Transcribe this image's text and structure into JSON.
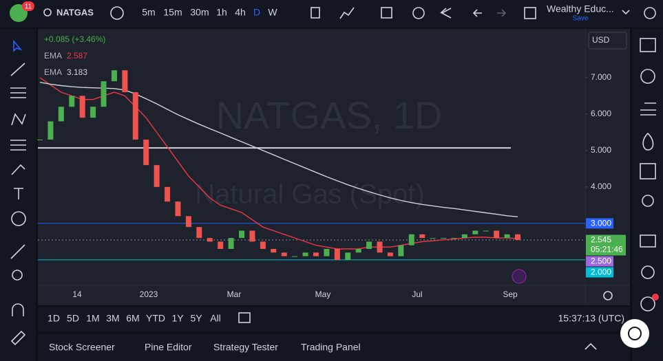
{
  "header": {
    "badge": "11",
    "symbol": "NATGAS",
    "intervals": [
      "5m",
      "15m",
      "30m",
      "1h",
      "4h",
      "D",
      "W"
    ],
    "account": "Wealthy Educ...",
    "save": "Save"
  },
  "legend": {
    "change": "+0.085 (+3.46%)",
    "ema": [
      {
        "label": "EMA",
        "value": "2.587"
      },
      {
        "label": "EMA",
        "value": "3.183"
      }
    ]
  },
  "currency": "USD",
  "chart": {
    "type": "candlestick",
    "watermark": "NATGAS, 1D",
    "subtitle": "Natural Gas (Spot)",
    "x_labels": [
      "14",
      "2023",
      "Mar",
      "May",
      "Jul",
      "Sep"
    ],
    "ylim": [
      1.3,
      8.28
    ],
    "yticks": [
      {
        "value": 4,
        "label": "4.000"
      },
      {
        "value": 5,
        "label": "5.000"
      },
      {
        "value": 6,
        "label": "6.000"
      },
      {
        "value": 7,
        "label": "7.000"
      }
    ],
    "closes": [
      5.3,
      5.8,
      6.2,
      6.5,
      5.9,
      6.2,
      6.9,
      7.2,
      6.6,
      5.3,
      4.6,
      4.0,
      3.6,
      3.2,
      2.9,
      2.6,
      2.5,
      2.3,
      2.6,
      2.8,
      2.5,
      2.3,
      2.2,
      2.1,
      2.1,
      2.2,
      2.1,
      2.3,
      2.0,
      2.2,
      2.3,
      2.5,
      2.2,
      2.1,
      2.4,
      2.7,
      2.6,
      2.6,
      2.6,
      2.6,
      2.7,
      2.8,
      2.8,
      2.6,
      2.7,
      2.545
    ],
    "up_color": "#4caf50",
    "down_color": "#ef5350",
    "series": [
      {
        "name": "EMA",
        "color": "#f23645",
        "values": [
          7.0,
          6.8,
          6.6,
          6.5,
          6.4,
          6.4,
          6.5,
          6.6,
          6.5,
          6.2,
          5.9,
          5.5,
          5.1,
          4.7,
          4.3,
          4.0,
          3.7,
          3.5,
          3.4,
          3.3,
          3.1,
          2.9,
          2.8,
          2.7,
          2.6,
          2.5,
          2.4,
          2.35,
          2.3,
          2.3,
          2.3,
          2.35,
          2.35,
          2.35,
          2.4,
          2.45,
          2.5,
          2.52,
          2.55,
          2.57,
          2.6,
          2.62,
          2.62,
          2.6,
          2.6,
          2.587
        ]
      },
      {
        "name": "EMA",
        "color": "#d1d4dc",
        "values": [
          6.87,
          6.82,
          6.78,
          6.75,
          6.73,
          6.72,
          6.71,
          6.7,
          6.66,
          6.55,
          6.42,
          6.28,
          6.13,
          5.98,
          5.85,
          5.72,
          5.6,
          5.48,
          5.36,
          5.24,
          5.12,
          5.0,
          4.88,
          4.76,
          4.64,
          4.52,
          4.4,
          4.28,
          4.17,
          4.06,
          3.96,
          3.87,
          3.78,
          3.7,
          3.63,
          3.57,
          3.52,
          3.48,
          3.44,
          3.41,
          3.37,
          3.33,
          3.29,
          3.25,
          3.21,
          3.183
        ]
      }
    ],
    "resistance": 5.07,
    "levels": [
      {
        "value": 3,
        "label": "3.000",
        "color": "#2962ff"
      },
      {
        "value": 2.5,
        "label": "2.500",
        "color": "#9c6ade"
      },
      {
        "value": 2,
        "label": "2.000",
        "color": "#00bcd4"
      }
    ],
    "last": {
      "label": "2.545",
      "countdown": "05:21:46",
      "color": "#4caf50"
    }
  },
  "ranges": [
    "1D",
    "5D",
    "1M",
    "3M",
    "6M",
    "YTD",
    "1Y",
    "5Y",
    "All"
  ],
  "clock": "15:37:13 (UTC)",
  "tabs": [
    "Stock Screener",
    "Pine Editor",
    "Strategy Tester",
    "Trading Panel"
  ]
}
